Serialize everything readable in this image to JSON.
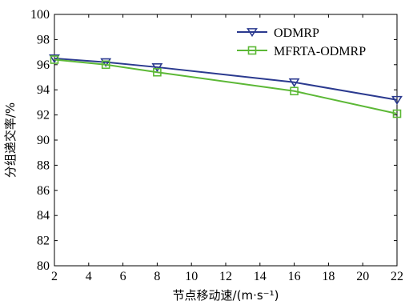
{
  "chart_data": {
    "type": "line",
    "xlabel": "节点移动速/(m·s⁻¹)",
    "ylabel": "分组递交率/%",
    "xlim": [
      2,
      22
    ],
    "ylim": [
      80,
      100
    ],
    "xticks": [
      2,
      4,
      6,
      8,
      10,
      12,
      14,
      16,
      18,
      20,
      22
    ],
    "yticks": [
      80,
      82,
      84,
      86,
      88,
      90,
      92,
      94,
      96,
      98,
      100
    ],
    "grid": false,
    "legend_position": "top-right",
    "series": [
      {
        "name": "ODMRP",
        "color": "#2b3a8f",
        "marker": "triangle-down",
        "x": [
          2,
          5,
          8,
          16,
          22
        ],
        "y": [
          96.5,
          96.2,
          95.8,
          94.6,
          93.2
        ]
      },
      {
        "name": "MFRTA-ODMRP",
        "color": "#5cb836",
        "marker": "square",
        "x": [
          2,
          5,
          8,
          16,
          22
        ],
        "y": [
          96.4,
          96.0,
          95.4,
          93.9,
          92.1
        ]
      }
    ]
  }
}
